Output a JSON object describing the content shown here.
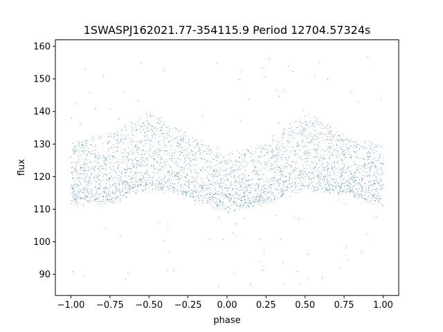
{
  "chart_data": {
    "type": "scatter",
    "title": "1SWASPJ162021.77-354115.9 Period 12704.57324s",
    "xlabel": "phase",
    "ylabel": "flux",
    "xlim": [
      -1.1,
      1.1
    ],
    "ylim": [
      83.5,
      162
    ],
    "xticks": [
      -1.0,
      -0.75,
      -0.5,
      -0.25,
      0.0,
      0.25,
      0.5,
      0.75,
      1.0
    ],
    "xtick_labels": [
      "−1.00",
      "−0.75",
      "−0.50",
      "−0.25",
      "0.00",
      "0.25",
      "0.50",
      "0.75",
      "1.00"
    ],
    "yticks": [
      90,
      100,
      110,
      120,
      130,
      140,
      150,
      160
    ],
    "ytick_labels": [
      "90",
      "100",
      "110",
      "120",
      "130",
      "140",
      "150",
      "160"
    ],
    "grid": false,
    "color": "#1f77b4",
    "series": [
      {
        "upper_envelope": {
          "x": [
            -1.0,
            -0.75,
            -0.5,
            -0.25,
            0.0,
            0.25,
            0.5,
            0.75,
            1.0
          ],
          "y": [
            130,
            133,
            140,
            133,
            126,
            131,
            140,
            133,
            129
          ]
        },
        "lower_envelope": {
          "x": [
            -1.0,
            -0.75,
            -0.5,
            -0.25,
            0.0,
            0.25,
            0.5,
            0.75,
            1.0
          ],
          "y": [
            112,
            112,
            117,
            114,
            110,
            112,
            117,
            115,
            112
          ]
        },
        "range_x": [
          -1.0,
          1.0
        ],
        "point_count": 25000,
        "outlier_y_range": [
          86,
          157
        ]
      }
    ]
  }
}
